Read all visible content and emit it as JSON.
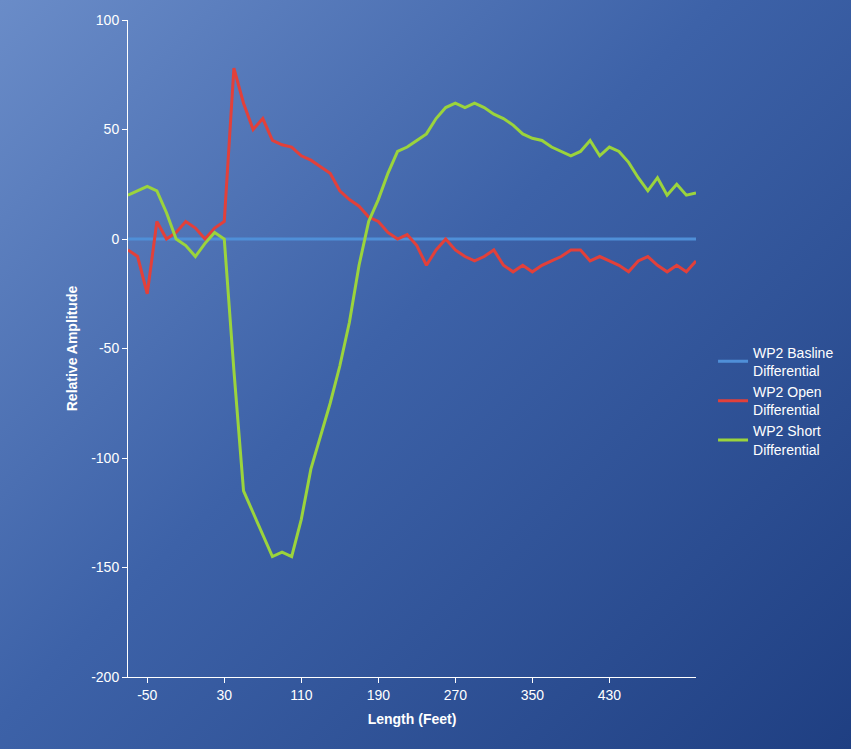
{
  "chart_data": {
    "type": "line",
    "x_label": "Length (Feet)",
    "y_label": "Relative Amplitude",
    "x": [
      -70,
      -60,
      -50,
      -40,
      -30,
      -20,
      -10,
      0,
      10,
      20,
      30,
      40,
      50,
      60,
      70,
      80,
      90,
      100,
      110,
      120,
      130,
      140,
      150,
      160,
      170,
      180,
      190,
      200,
      210,
      220,
      230,
      240,
      250,
      260,
      270,
      280,
      290,
      300,
      310,
      320,
      330,
      340,
      350,
      360,
      370,
      380,
      390,
      400,
      410,
      420,
      430,
      440,
      450,
      460,
      470,
      480,
      490,
      500,
      510,
      520
    ],
    "series": [
      {
        "name": "WP2 Basline Differential",
        "color": "#4f8fd8",
        "values": [
          0,
          0,
          0,
          0,
          0,
          0,
          0,
          0,
          0,
          0,
          0,
          0,
          0,
          0,
          0,
          0,
          0,
          0,
          0,
          0,
          0,
          0,
          0,
          0,
          0,
          0,
          0,
          0,
          0,
          0,
          0,
          0,
          0,
          0,
          0,
          0,
          0,
          0,
          0,
          0,
          0,
          0,
          0,
          0,
          0,
          0,
          0,
          0,
          0,
          0,
          0,
          0,
          0,
          0,
          0,
          0,
          0,
          0,
          0,
          0
        ]
      },
      {
        "name": "WP2 Open Differential",
        "color": "#e2403a",
        "values": [
          -5,
          -8,
          -25,
          8,
          0,
          3,
          8,
          5,
          0,
          5,
          8,
          78,
          62,
          50,
          55,
          45,
          43,
          42,
          38,
          36,
          33,
          30,
          22,
          18,
          15,
          10,
          8,
          3,
          0,
          2,
          -3,
          -12,
          -5,
          0,
          -5,
          -8,
          -10,
          -8,
          -5,
          -12,
          -15,
          -12,
          -15,
          -12,
          -10,
          -8,
          -5,
          -5,
          -10,
          -8,
          -10,
          -12,
          -15,
          -10,
          -8,
          -12,
          -15,
          -12,
          -15,
          -10
        ]
      },
      {
        "name": "WP2 Short Differential",
        "color": "#9bd43c",
        "values": [
          20,
          22,
          24,
          22,
          12,
          0,
          -3,
          -8,
          -2,
          3,
          0,
          -60,
          -115,
          -125,
          -135,
          -145,
          -143,
          -145,
          -128,
          -105,
          -90,
          -75,
          -58,
          -38,
          -12,
          8,
          18,
          30,
          40,
          42,
          45,
          48,
          55,
          60,
          62,
          60,
          62,
          60,
          57,
          55,
          52,
          48,
          46,
          45,
          42,
          40,
          38,
          40,
          45,
          38,
          42,
          40,
          35,
          28,
          22,
          28,
          20,
          25,
          20,
          21
        ]
      }
    ],
    "xlim": [
      -70,
      520
    ],
    "xticks": [
      -50,
      30,
      110,
      190,
      270,
      350,
      430
    ],
    "ylim": [
      -200,
      100
    ],
    "yticks": [
      -200,
      -150,
      -100,
      -50,
      0,
      50,
      100
    ],
    "grid": false,
    "legend": "right"
  }
}
